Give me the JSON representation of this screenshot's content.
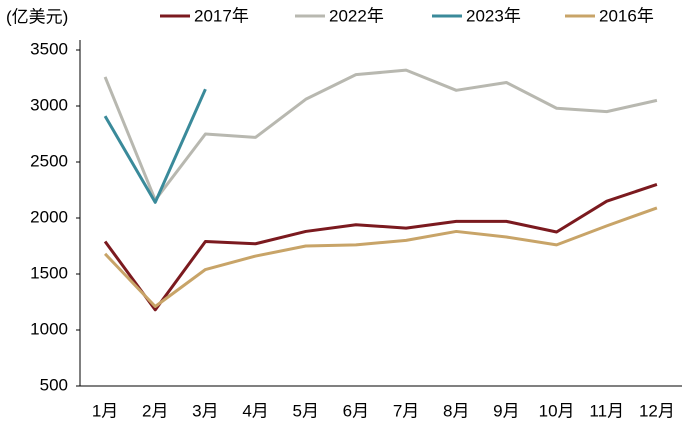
{
  "chart_data": {
    "type": "line",
    "unit_label": "(亿美元)",
    "categories": [
      "1月",
      "2月",
      "3月",
      "4月",
      "5月",
      "6月",
      "7月",
      "8月",
      "9月",
      "10月",
      "11月",
      "12月"
    ],
    "series": [
      {
        "name": "2017年",
        "color": "#7b1a1f",
        "values": [
          1790,
          1180,
          1790,
          1770,
          1880,
          1940,
          1910,
          1970,
          1970,
          1875,
          2150,
          2300
        ]
      },
      {
        "name": "2022年",
        "color": "#b8b8b0",
        "values": [
          3260,
          2160,
          2750,
          2720,
          3060,
          3280,
          3320,
          3140,
          3210,
          2980,
          2950,
          3050
        ]
      },
      {
        "name": "2023年",
        "color": "#3a8a9a",
        "values": [
          2910,
          2140,
          3150,
          null,
          null,
          null,
          null,
          null,
          null,
          null,
          null,
          null
        ]
      },
      {
        "name": "2016年",
        "color": "#c8a468",
        "values": [
          1680,
          1210,
          1540,
          1660,
          1750,
          1760,
          1800,
          1880,
          1830,
          1760,
          1930,
          2090
        ]
      }
    ],
    "ylim": [
      500,
      3500
    ],
    "yticks": [
      500,
      1000,
      1500,
      2000,
      2500,
      3000,
      3500
    ],
    "grid": false
  }
}
